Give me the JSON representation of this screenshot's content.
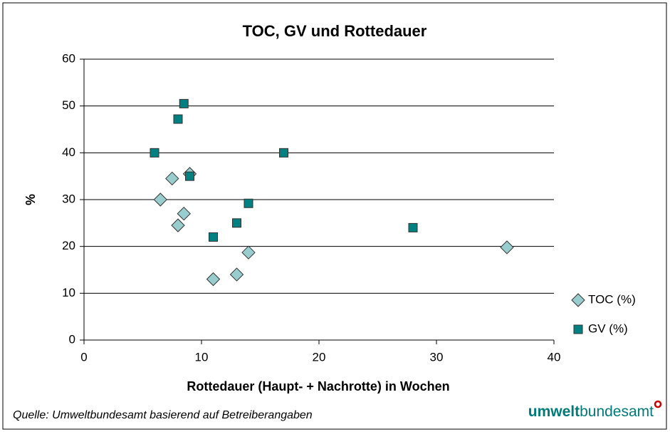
{
  "chart_data": {
    "type": "scatter",
    "title": "TOC, GV und Rottedauer",
    "x_label": "Rottedauer (Haupt- + Nachrotte) in Wochen",
    "y_label": "%",
    "xlim": [
      0,
      40
    ],
    "xticks": [
      0,
      10,
      20,
      30,
      40
    ],
    "ylim": [
      0,
      60
    ],
    "yticks": [
      0,
      10,
      20,
      30,
      40,
      50,
      60
    ],
    "grid": true,
    "legend": "right",
    "series": [
      {
        "name": "TOC (%)",
        "color": "#99cccc",
        "marker": "diamond",
        "x": [
          6.5,
          7.5,
          8,
          8.5,
          9,
          11,
          13,
          14,
          36
        ],
        "values": [
          30,
          34.5,
          24.5,
          27,
          35.5,
          13,
          14,
          18.7,
          19.8
        ]
      },
      {
        "name": "GV (%)",
        "color": "#008080",
        "marker": "square",
        "x": [
          6,
          8,
          8.5,
          9,
          11,
          13,
          14,
          17,
          28
        ],
        "values": [
          40,
          47.2,
          50.5,
          35,
          22,
          25,
          29.2,
          40,
          24
        ]
      }
    ],
    "source": "Quelle: Umweltbundesamt basierend auf Betreiberangaben",
    "logo": {
      "bold": "umwelt",
      "regular": "bundesamt"
    }
  }
}
